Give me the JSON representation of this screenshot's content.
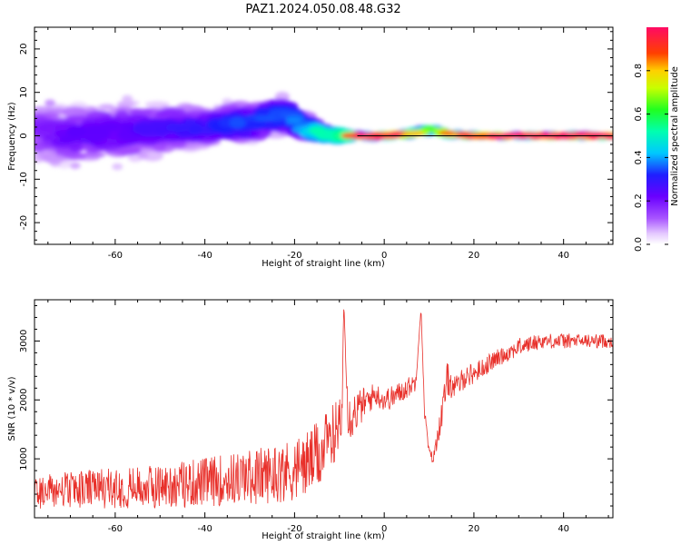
{
  "chart_data": [
    {
      "type": "heatmap",
      "title": "PAZ1.2024.050.08.48.G32",
      "xlabel": "Height of straight line (km)",
      "ylabel": "Frequency (Hz)",
      "xlim": [
        -78,
        51
      ],
      "ylim": [
        -25,
        25
      ],
      "xticks": [
        -60,
        -40,
        -20,
        0,
        20,
        40
      ],
      "yticks": [
        -20,
        -10,
        0,
        10,
        20
      ],
      "colorbar": {
        "label": "Normalized spectral amplitude",
        "range": [
          0,
          1
        ],
        "ticks": [
          "0.0",
          "0.2",
          "0.4",
          "0.6",
          "0.8"
        ],
        "colormap": [
          "#ffffff",
          "#cc99ff",
          "#7700ff",
          "#0033ff",
          "#00ddff",
          "#00ff66",
          "#ccff00",
          "#ffcc00",
          "#ff3300",
          "#ff0066"
        ]
      },
      "ridge": {
        "description_free": true,
        "x_km": [
          -78,
          -70,
          -60,
          -50,
          -40,
          -30,
          -22,
          -18,
          -12,
          -6,
          0,
          6,
          10,
          14,
          20,
          30,
          40,
          51
        ],
        "center_hz": [
          1,
          0,
          1,
          1.5,
          2,
          3,
          5,
          2,
          0,
          0,
          0,
          0.5,
          1.5,
          0.5,
          0,
          0,
          0,
          0
        ],
        "spread_hz": [
          4.5,
          4.5,
          4.5,
          4,
          3,
          3,
          3,
          2,
          1,
          0.5,
          0.5,
          0.6,
          0.8,
          0.6,
          0.4,
          0.4,
          0.4,
          0.4
        ],
        "amplitude": [
          0.15,
          0.2,
          0.2,
          0.22,
          0.25,
          0.3,
          0.3,
          0.35,
          0.5,
          0.85,
          0.9,
          0.75,
          0.6,
          0.7,
          0.85,
          0.95,
          0.95,
          0.95
        ]
      },
      "reference_line_hz": 0
    },
    {
      "type": "line",
      "title": "",
      "xlabel": "Height of straight line (km)",
      "ylabel": "SNR (10 * v/v)",
      "xlim": [
        -78,
        51
      ],
      "ylim": [
        0,
        3700
      ],
      "xticks": [
        -60,
        -40,
        -20,
        0,
        20,
        40
      ],
      "yticks": [
        1000,
        2000,
        3000
      ],
      "color": "#e8302a",
      "x_km": [
        -78,
        -70,
        -60,
        -50,
        -40,
        -30,
        -20,
        -15,
        -12,
        -9.5,
        -9,
        -8,
        -5,
        -2,
        0,
        2,
        5,
        7,
        8.2,
        9,
        10,
        11,
        12,
        13,
        14,
        16,
        18,
        20,
        25,
        30,
        35,
        40,
        45,
        51
      ],
      "snr_mean": [
        350,
        380,
        400,
        420,
        480,
        550,
        650,
        850,
        1150,
        1600,
        3650,
        1700,
        1900,
        2100,
        2000,
        2050,
        2200,
        2300,
        3550,
        1800,
        1100,
        1000,
        1450,
        1800,
        2350,
        2200,
        2400,
        2450,
        2700,
        2900,
        3000,
        3000,
        3000,
        3000
      ],
      "snr_noise": [
        330,
        350,
        380,
        420,
        470,
        520,
        600,
        650,
        600,
        500,
        0,
        450,
        300,
        200,
        200,
        200,
        180,
        150,
        0,
        120,
        100,
        100,
        200,
        250,
        300,
        200,
        200,
        180,
        150,
        150,
        130,
        130,
        120,
        120
      ]
    }
  ]
}
